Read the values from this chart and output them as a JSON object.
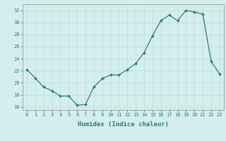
{
  "x": [
    0,
    1,
    2,
    3,
    4,
    5,
    6,
    7,
    8,
    9,
    10,
    11,
    12,
    13,
    14,
    15,
    16,
    17,
    18,
    19,
    20,
    21,
    22,
    23
  ],
  "y": [
    22.2,
    20.8,
    19.3,
    18.7,
    17.8,
    17.8,
    16.3,
    16.4,
    19.3,
    20.7,
    21.3,
    21.3,
    22.2,
    23.2,
    25.0,
    27.8,
    30.3,
    31.2,
    30.3,
    32.0,
    31.7,
    31.4,
    23.5,
    21.5
  ],
  "line_color": "#2e7d6e",
  "marker": "D",
  "marker_size": 2.0,
  "bg_color": "#d4eeee",
  "grid_color": "#c0dada",
  "xlabel": "Humidex (Indice chaleur)",
  "ylim": [
    15.5,
    33.0
  ],
  "yticks": [
    16,
    18,
    20,
    22,
    24,
    26,
    28,
    30,
    32
  ],
  "xticks": [
    0,
    1,
    2,
    3,
    4,
    5,
    6,
    7,
    8,
    9,
    10,
    11,
    12,
    13,
    14,
    15,
    16,
    17,
    18,
    19,
    20,
    21,
    22,
    23
  ],
  "tick_color": "#2e7d6e",
  "font_color": "#2e7d6e",
  "axis_color": "#888888",
  "tick_fontsize": 5.0,
  "xlabel_fontsize": 6.5,
  "linewidth": 0.9
}
